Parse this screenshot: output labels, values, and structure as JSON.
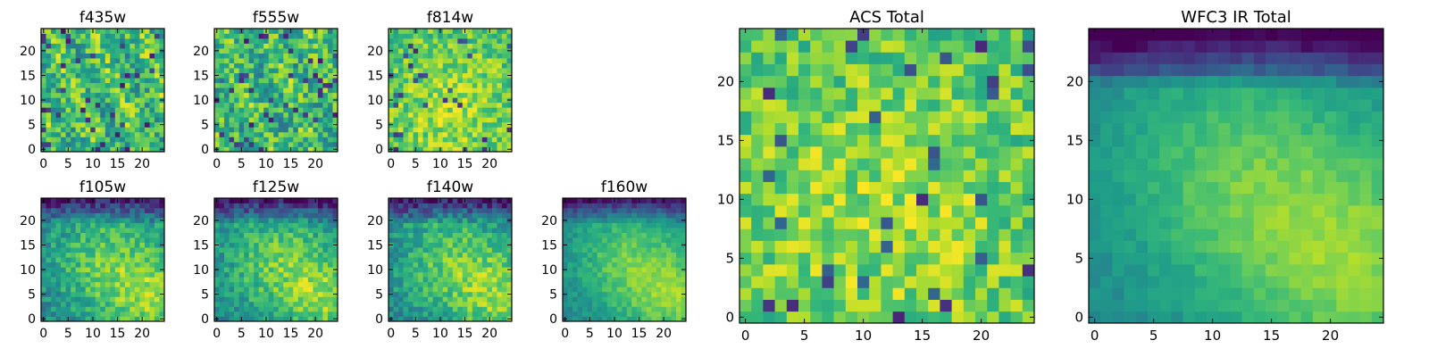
{
  "chart_data": [
    {
      "type": "heatmap",
      "title": "f435w",
      "x_ticks": [
        "0",
        "5",
        "10",
        "15",
        "20"
      ],
      "y_ticks": [
        "0",
        "5",
        "10",
        "15",
        "20"
      ],
      "xlim": [
        -0.5,
        24.5
      ],
      "ylim": [
        -0.5,
        24.5
      ],
      "grid_size": 25,
      "colormap": "viridis",
      "texture": "noise",
      "seed": 11
    },
    {
      "type": "heatmap",
      "title": "f555w",
      "x_ticks": [
        "0",
        "5",
        "10",
        "15",
        "20"
      ],
      "y_ticks": [
        "0",
        "5",
        "10",
        "15",
        "20"
      ],
      "xlim": [
        -0.5,
        24.5
      ],
      "ylim": [
        -0.5,
        24.5
      ],
      "grid_size": 25,
      "colormap": "viridis",
      "texture": "noise",
      "seed": 23
    },
    {
      "type": "heatmap",
      "title": "f814w",
      "x_ticks": [
        "0",
        "5",
        "10",
        "15",
        "20"
      ],
      "y_ticks": [
        "0",
        "5",
        "10",
        "15",
        "20"
      ],
      "xlim": [
        -0.5,
        24.5
      ],
      "ylim": [
        -0.5,
        24.5
      ],
      "grid_size": 25,
      "colormap": "viridis",
      "texture": "noise-bright",
      "seed": 37
    },
    {
      "type": "heatmap",
      "title": "f105w",
      "x_ticks": [
        "0",
        "5",
        "10",
        "15",
        "20"
      ],
      "y_ticks": [
        "0",
        "5",
        "10",
        "15",
        "20"
      ],
      "xlim": [
        -0.5,
        24.5
      ],
      "ylim": [
        -0.5,
        24.5
      ],
      "grid_size": 25,
      "colormap": "viridis",
      "texture": "ir",
      "seed": 41
    },
    {
      "type": "heatmap",
      "title": "f125w",
      "x_ticks": [
        "0",
        "5",
        "10",
        "15",
        "20"
      ],
      "y_ticks": [
        "0",
        "5",
        "10",
        "15",
        "20"
      ],
      "xlim": [
        -0.5,
        24.5
      ],
      "ylim": [
        -0.5,
        24.5
      ],
      "grid_size": 25,
      "colormap": "viridis",
      "texture": "ir",
      "seed": 53
    },
    {
      "type": "heatmap",
      "title": "f140w",
      "x_ticks": [
        "0",
        "5",
        "10",
        "15",
        "20"
      ],
      "y_ticks": [
        "0",
        "5",
        "10",
        "15",
        "20"
      ],
      "xlim": [
        -0.5,
        24.5
      ],
      "ylim": [
        -0.5,
        24.5
      ],
      "grid_size": 25,
      "colormap": "viridis",
      "texture": "ir",
      "seed": 67
    },
    {
      "type": "heatmap",
      "title": "f160w",
      "x_ticks": [
        "0",
        "5",
        "10",
        "15",
        "20"
      ],
      "y_ticks": [
        "0",
        "5",
        "10",
        "15",
        "20"
      ],
      "xlim": [
        -0.5,
        24.5
      ],
      "ylim": [
        -0.5,
        24.5
      ],
      "grid_size": 25,
      "colormap": "viridis",
      "texture": "ir-smooth",
      "seed": 79
    },
    {
      "type": "heatmap",
      "title": "ACS Total",
      "x_ticks": [
        "0",
        "5",
        "10",
        "15",
        "20"
      ],
      "y_ticks": [
        "0",
        "5",
        "10",
        "15",
        "20"
      ],
      "xlim": [
        -0.5,
        24.5
      ],
      "ylim": [
        -0.5,
        24.5
      ],
      "grid_size": 25,
      "colormap": "viridis",
      "texture": "noise-bright",
      "seed": 97
    },
    {
      "type": "heatmap",
      "title": "WFC3 IR Total",
      "x_ticks": [
        "0",
        "5",
        "10",
        "15",
        "20"
      ],
      "y_ticks": [
        "0",
        "5",
        "10",
        "15",
        "20"
      ],
      "xlim": [
        -0.5,
        24.5
      ],
      "ylim": [
        -0.5,
        24.5
      ],
      "grid_size": 25,
      "colormap": "viridis",
      "texture": "ir-total",
      "seed": 103
    }
  ]
}
